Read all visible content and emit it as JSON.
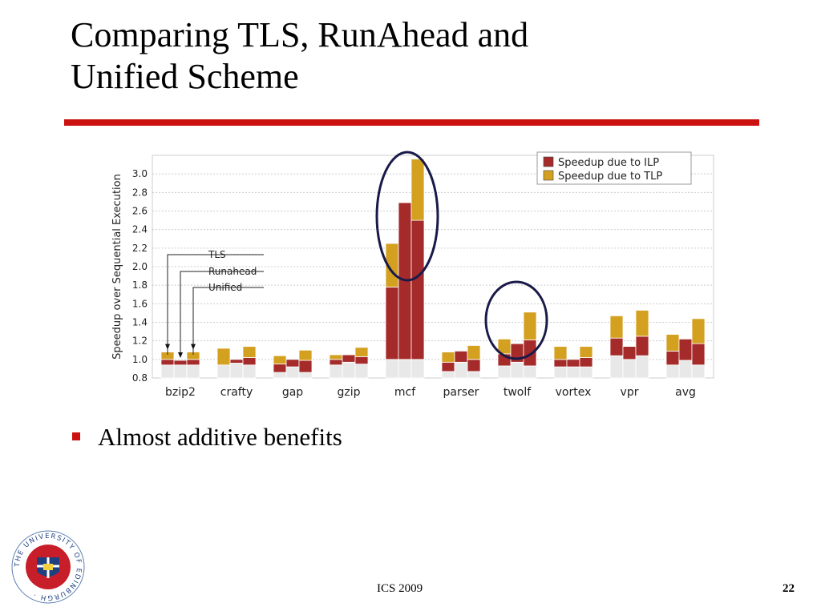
{
  "slide": {
    "title_line1": "Comparing TLS, RunAhead and",
    "title_line2": "Unified Scheme",
    "bullet": "Almost additive benefits",
    "footer": "ICS 2009",
    "page_number": "22",
    "logo_text": "THE UNIVERSITY OF EDINBURGH"
  },
  "colors": {
    "rule": "#cc1111",
    "ilp": "#a52a2a",
    "tlp": "#d4a020",
    "base": "#e8e8e8",
    "circle": "#1a1a4a"
  },
  "chart_data": {
    "type": "bar",
    "stacked": true,
    "ylabel": "Speedup over Sequential Execution",
    "ylim": [
      0.8,
      3.2
    ],
    "yticks": [
      0.8,
      1.0,
      1.2,
      1.4,
      1.6,
      1.8,
      2.0,
      2.2,
      2.4,
      2.6,
      2.8,
      3.0
    ],
    "grid": true,
    "legend": {
      "position": "top-right",
      "entries": [
        "Speedup due to ILP",
        "Speedup due to TLP"
      ]
    },
    "bar_labels": [
      "TLS",
      "Runahead",
      "Unified"
    ],
    "categories": [
      "bzip2",
      "crafty",
      "gap",
      "gzip",
      "mcf",
      "parser",
      "twolf",
      "vortex",
      "vpr",
      "avg"
    ],
    "series": [
      {
        "name": "Speedup due to ILP",
        "values": [
          [
            0.94,
            0.94,
            0.94
          ],
          [
            0.94,
            0.96,
            0.94
          ],
          [
            0.86,
            0.92,
            0.86
          ],
          [
            0.94,
            0.97,
            0.95
          ],
          [
            1.0,
            1.0,
            1.0
          ],
          [
            0.87,
            0.97,
            0.87
          ],
          [
            0.93,
            0.97,
            0.93
          ],
          [
            0.92,
            0.92,
            0.92
          ],
          [
            1.04,
            1.0,
            1.04
          ],
          [
            0.94,
            0.99,
            0.94
          ]
        ]
      },
      {
        "name": "Speedup due to ILP",
        "values": [
          [
            1.0,
            0.99,
            1.0
          ],
          [
            0.94,
            1.0,
            1.02
          ],
          [
            0.95,
            1.0,
            0.99
          ],
          [
            1.0,
            1.05,
            1.03
          ],
          [
            1.78,
            2.69,
            2.5
          ],
          [
            0.97,
            1.09,
            1.0
          ],
          [
            1.06,
            1.17,
            1.21
          ],
          [
            1.0,
            1.0,
            1.02
          ],
          [
            1.23,
            1.14,
            1.25
          ],
          [
            1.09,
            1.22,
            1.17
          ]
        ]
      },
      {
        "name": "Speedup due to TLP",
        "values": [
          [
            1.08,
            0.99,
            1.08
          ],
          [
            1.12,
            1.0,
            1.14
          ],
          [
            1.04,
            1.0,
            1.1
          ],
          [
            1.05,
            1.05,
            1.13
          ],
          [
            2.25,
            2.69,
            3.16
          ],
          [
            1.08,
            1.09,
            1.15
          ],
          [
            1.22,
            1.17,
            1.51
          ],
          [
            1.14,
            1.0,
            1.14
          ],
          [
            1.47,
            1.14,
            1.53
          ],
          [
            1.27,
            1.22,
            1.44
          ]
        ]
      }
    ]
  }
}
